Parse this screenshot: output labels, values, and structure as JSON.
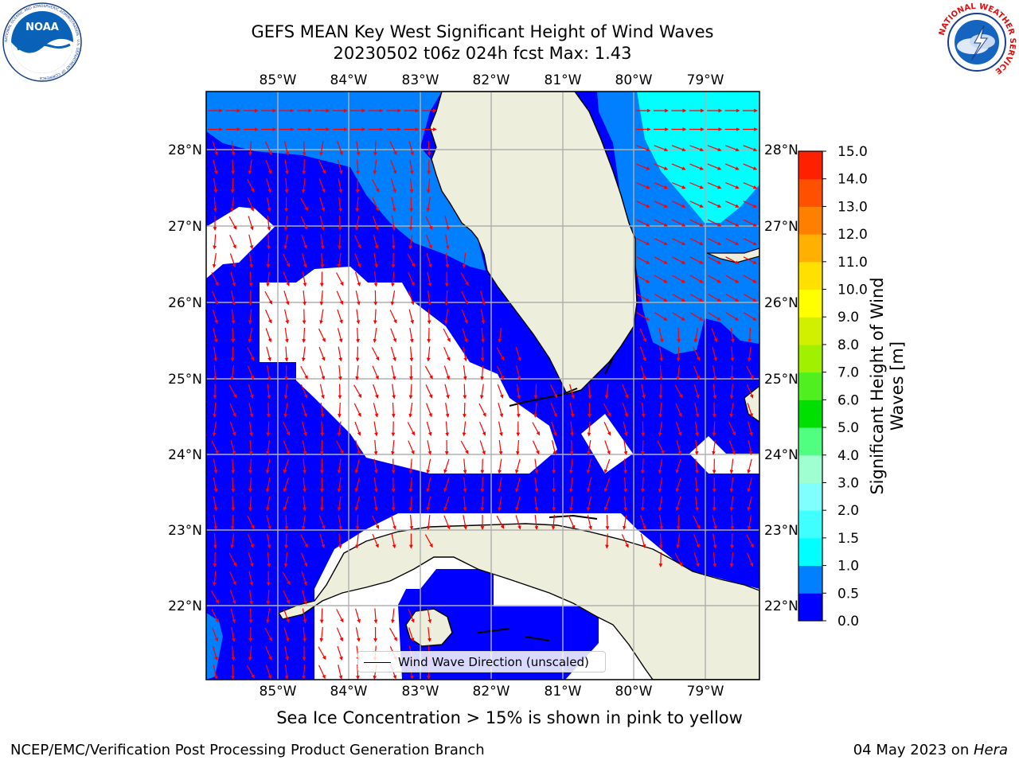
{
  "title_line1": "GEFS MEAN Key West Significant Height of Wind Waves",
  "title_line2": "20230502 t06z 024h fcst   Max: 1.43",
  "lon_labels": [
    "85°W",
    "84°W",
    "83°W",
    "82°W",
    "81°W",
    "80°W",
    "79°W"
  ],
  "lat_labels": [
    "28°N",
    "27°N",
    "26°N",
    "25°N",
    "24°N",
    "23°N",
    "22°N"
  ],
  "legend_label": "Wind Wave Direction (unscaled)",
  "colorbar": {
    "title": "Significant Height of Wind Waves [m]",
    "ticks": [
      "0.0",
      "0.5",
      "1.0",
      "1.5",
      "2.0",
      "3.0",
      "4.0",
      "5.0",
      "6.0",
      "7.0",
      "8.0",
      "9.0",
      "10.0",
      "11.0",
      "12.0",
      "13.0",
      "14.0",
      "15.0"
    ],
    "colors": [
      "#0000ff",
      "#0080ff",
      "#00ffff",
      "#40ffff",
      "#80ffff",
      "#a0ffd0",
      "#50ff80",
      "#00e000",
      "#50f020",
      "#a0f000",
      "#d0f000",
      "#ffff00",
      "#ffe000",
      "#ffb000",
      "#ff8000",
      "#ff5000",
      "#ff2000"
    ]
  },
  "footer_note": "Sea Ice Concentration > 15% is shown in pink to yellow",
  "credit_left": "NCEP/EMC/Verification Post Processing Product Generation Branch",
  "credit_date": "04 May 2023 on ",
  "credit_machine": "Hera",
  "logos": {
    "noaa_text": "NOAA",
    "noaa_ring_text": "NATIONAL OCEANIC AND ATMOSPHERIC ADMINISTRATION · U.S. DEPARTMENT OF COMMERCE",
    "nws_ring_text": "NATIONAL WEATHER SERVICE"
  },
  "colors": {
    "land": "#eeeedc",
    "wave_low": "#0000ff",
    "wave_mid": "#0080ff",
    "wave_high": "#00ffff",
    "arrow": "#ff0000",
    "grid": "#b0b0b0"
  }
}
